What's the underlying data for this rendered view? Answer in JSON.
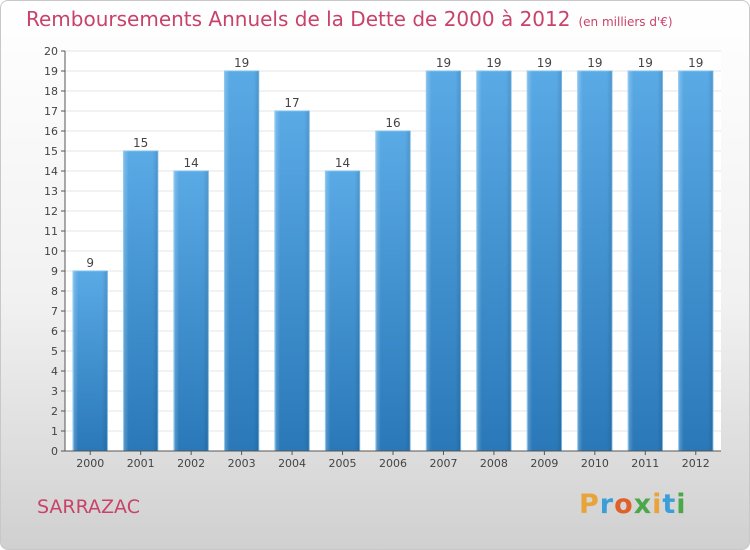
{
  "header": {
    "title": "Remboursements Annuels de la Dette de 2000 à 2012",
    "unit": "(en milliers d'€)"
  },
  "footer": {
    "place": "SARRAZAC",
    "logo_text": "Proxiti"
  },
  "colors": {
    "title": "#c8426a",
    "bar_light": "#5aaae6",
    "bar_dark": "#2a78b8",
    "axis": "#555555",
    "grid": "#e6e6e6"
  },
  "chart_data": {
    "type": "bar",
    "title": "Remboursements Annuels de la Dette de 2000 à 2012",
    "subtitle": "(en milliers d'€)",
    "categories": [
      "2000",
      "2001",
      "2002",
      "2003",
      "2004",
      "2005",
      "2006",
      "2007",
      "2008",
      "2009",
      "2010",
      "2011",
      "2012"
    ],
    "values": [
      9,
      15,
      14,
      19,
      17,
      14,
      16,
      19,
      19,
      19,
      19,
      19,
      19
    ],
    "ylim": [
      0,
      20
    ],
    "yticks": [
      0,
      1,
      2,
      3,
      4,
      5,
      6,
      7,
      8,
      9,
      10,
      11,
      12,
      13,
      14,
      15,
      16,
      17,
      18,
      19,
      20
    ],
    "xlabel": "",
    "ylabel": "",
    "grid": true,
    "data_labels": true
  }
}
